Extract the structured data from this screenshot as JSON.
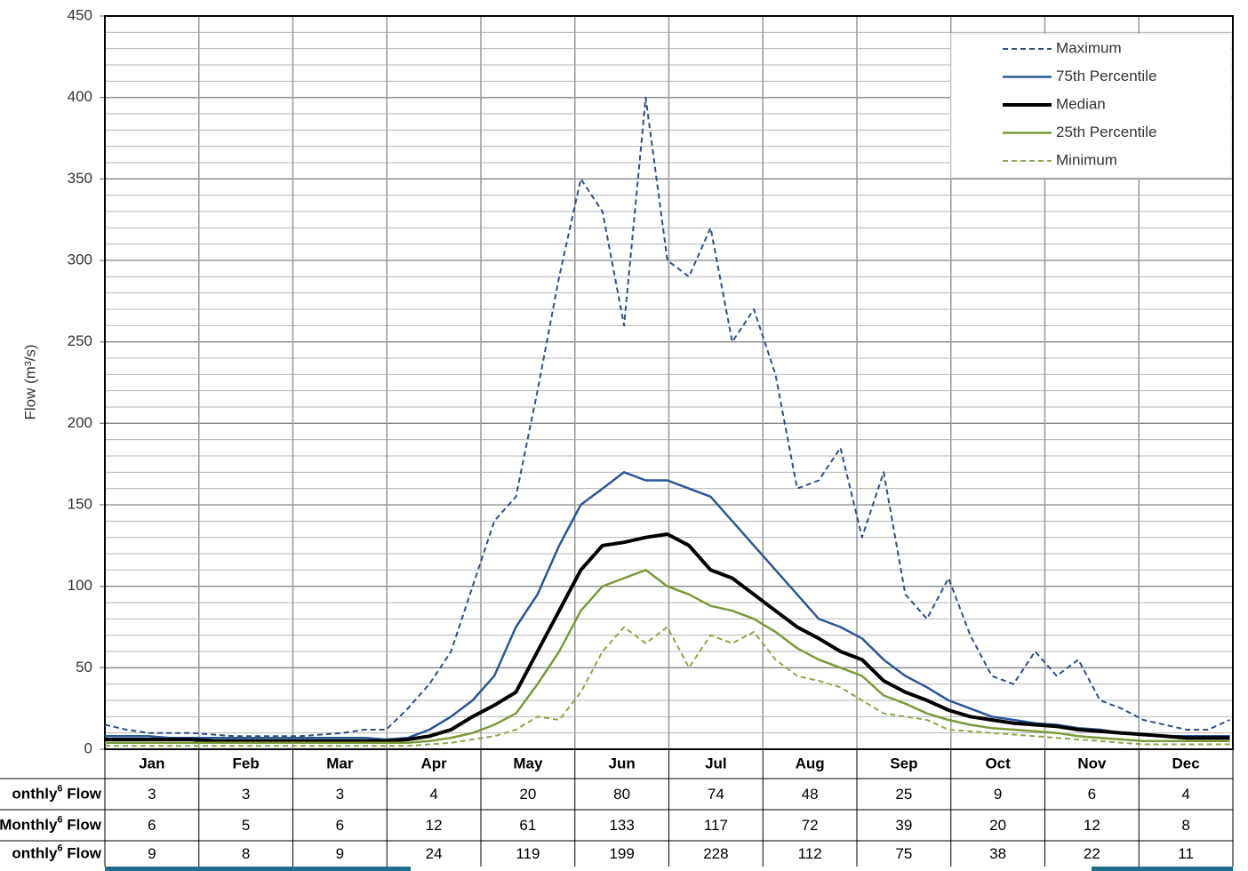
{
  "chart_data": {
    "type": "line",
    "y_label": "Flow (m³/s)",
    "x": [
      1,
      8,
      15,
      22,
      29,
      36,
      43,
      50,
      57,
      64,
      71,
      78,
      85,
      92,
      99,
      106,
      113,
      120,
      127,
      134,
      141,
      148,
      155,
      162,
      169,
      176,
      183,
      190,
      197,
      204,
      211,
      218,
      225,
      232,
      239,
      246,
      253,
      260,
      267,
      274,
      281,
      288,
      295,
      302,
      309,
      316,
      323,
      330,
      337,
      344,
      351,
      358,
      365
    ],
    "xlim": [
      1,
      366
    ],
    "ylim": [
      0,
      450
    ],
    "yticks": [
      0,
      50,
      100,
      150,
      200,
      250,
      300,
      350,
      400,
      450
    ],
    "ygrid": [
      10,
      20,
      30,
      40,
      50,
      60,
      70,
      80,
      90,
      100,
      110,
      120,
      130,
      140,
      150,
      160,
      170,
      180,
      190,
      200,
      210,
      220,
      230,
      240,
      250,
      260,
      270,
      280,
      290,
      300,
      310,
      320,
      330,
      340,
      350,
      360,
      370,
      380,
      390,
      400,
      410,
      420,
      430,
      440
    ],
    "legend": "upper right",
    "series": [
      {
        "name": "Maximum",
        "color": "#2f4f80",
        "style": "dashed",
        "width": 2,
        "values": [
          15,
          12,
          10,
          10,
          10,
          9,
          8,
          8,
          8,
          8,
          9,
          10,
          12,
          12,
          25,
          40,
          60,
          100,
          140,
          155,
          220,
          290,
          350,
          330,
          260,
          400,
          300,
          290,
          320,
          250,
          270,
          230,
          160,
          165,
          185,
          130,
          170,
          95,
          80,
          105,
          70,
          45,
          40,
          60,
          45,
          55,
          30,
          25,
          18,
          15,
          12,
          12,
          18
        ]
      },
      {
        "name": "75th Percentile",
        "color": "#2b5797",
        "style": "solid",
        "width": 2.5,
        "values": [
          8,
          8,
          8,
          7,
          7,
          7,
          7,
          7,
          7,
          7,
          7,
          7,
          7,
          6,
          7,
          12,
          20,
          30,
          45,
          75,
          95,
          125,
          150,
          160,
          170,
          165,
          165,
          160,
          155,
          140,
          125,
          110,
          95,
          80,
          75,
          68,
          55,
          45,
          38,
          30,
          25,
          20,
          18,
          16,
          15,
          13,
          12,
          10,
          9,
          8,
          8,
          8,
          8
        ]
      },
      {
        "name": "Median",
        "color": "#000000",
        "style": "solid",
        "width": 4,
        "values": [
          6,
          6,
          6,
          6,
          6,
          5,
          5,
          5,
          5,
          5,
          5,
          5,
          5,
          5,
          6,
          8,
          12,
          20,
          27,
          35,
          60,
          85,
          110,
          125,
          127,
          130,
          132,
          125,
          110,
          105,
          95,
          85,
          75,
          68,
          60,
          55,
          42,
          35,
          30,
          24,
          20,
          18,
          16,
          15,
          14,
          12,
          11,
          10,
          9,
          8,
          7,
          7,
          7
        ]
      },
      {
        "name": "25th Percentile",
        "color": "#7a9a3a",
        "style": "solid",
        "width": 2.5,
        "values": [
          4,
          4,
          4,
          4,
          4,
          4,
          4,
          4,
          4,
          4,
          4,
          4,
          4,
          4,
          4,
          5,
          7,
          10,
          15,
          22,
          40,
          60,
          85,
          100,
          105,
          110,
          100,
          95,
          88,
          85,
          80,
          72,
          62,
          55,
          50,
          45,
          33,
          28,
          22,
          18,
          15,
          13,
          12,
          11,
          10,
          8,
          7,
          6,
          5,
          5,
          5,
          5,
          5
        ]
      },
      {
        "name": "Minimum",
        "color": "#8aa84a",
        "style": "dashed",
        "width": 2,
        "values": [
          2,
          2,
          2,
          2,
          2,
          2,
          2,
          2,
          2,
          2,
          2,
          2,
          2,
          2,
          2,
          3,
          4,
          6,
          8,
          12,
          20,
          18,
          35,
          60,
          75,
          65,
          75,
          50,
          70,
          65,
          72,
          55,
          45,
          42,
          38,
          30,
          22,
          20,
          18,
          12,
          11,
          10,
          9,
          8,
          7,
          6,
          5,
          4,
          3,
          3,
          3,
          3,
          3
        ]
      }
    ]
  },
  "table": {
    "header": [
      "Jan",
      "Feb",
      "Mar",
      "Apr",
      "May",
      "Jun",
      "Jul",
      "Aug",
      "Sep",
      "Oct",
      "Nov",
      "Dec"
    ],
    "rows": [
      {
        "label": {
          "pre": "onthly",
          "sup": "6",
          "post": " Flow"
        },
        "values": [
          "3",
          "3",
          "3",
          "4",
          "20",
          "80",
          "74",
          "48",
          "25",
          "9",
          "6",
          "4"
        ]
      },
      {
        "label": {
          "pre": "Monthly",
          "sup": "6",
          "post": " Flow"
        },
        "values": [
          "6",
          "5",
          "6",
          "12",
          "61",
          "133",
          "117",
          "72",
          "39",
          "20",
          "12",
          "8"
        ]
      },
      {
        "label": {
          "pre": "onthly",
          "sup": "6",
          "post": " Flow"
        },
        "values": [
          "9",
          "8",
          "9",
          "24",
          "119",
          "199",
          "228",
          "112",
          "75",
          "38",
          "22",
          "11"
        ]
      }
    ]
  }
}
